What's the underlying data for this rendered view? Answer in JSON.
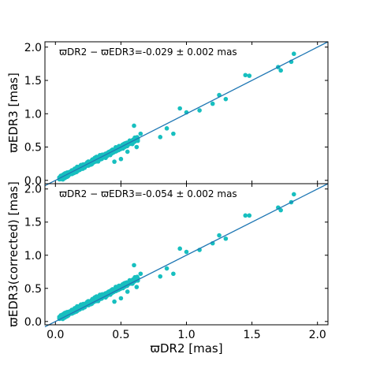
{
  "chart_data": [
    {
      "type": "scatter",
      "panel": "top",
      "annotation": "ϖDR2 − ϖEDR3=-0.029 ± 0.002 mas",
      "ylabel": "ϖEDR3 [mas]",
      "xlabel": "",
      "xlim": [
        -0.08,
        2.08
      ],
      "ylim": [
        -0.05,
        2.08
      ],
      "yticks": [
        "0.0",
        "0.5",
        "1.0",
        "1.5",
        "2.0"
      ],
      "xticks": [
        0.0,
        0.5,
        1.0,
        1.5,
        2.0
      ],
      "show_xtick_labels": false,
      "offset": 0.029,
      "reference_line": [
        [
          -0.08,
          -0.08
        ],
        [
          2.08,
          2.08
        ]
      ],
      "outliers": [
        [
          0.55,
          0.43
        ],
        [
          0.62,
          0.5
        ],
        [
          0.6,
          0.82
        ],
        [
          0.65,
          0.7
        ],
        [
          0.45,
          0.28
        ],
        [
          0.5,
          0.32
        ],
        [
          0.8,
          0.65
        ],
        [
          0.85,
          0.78
        ],
        [
          0.9,
          0.7
        ],
        [
          0.95,
          1.08
        ],
        [
          1.0,
          1.02
        ],
        [
          1.1,
          1.05
        ],
        [
          1.2,
          1.15
        ],
        [
          1.25,
          1.28
        ],
        [
          1.3,
          1.22
        ],
        [
          1.45,
          1.58
        ],
        [
          1.48,
          1.57
        ],
        [
          1.7,
          1.7
        ],
        [
          1.72,
          1.65
        ],
        [
          1.8,
          1.78
        ],
        [
          1.82,
          1.9
        ]
      ]
    },
    {
      "type": "scatter",
      "panel": "bottom",
      "annotation": "ϖDR2 − ϖEDR3=-0.054 ± 0.002 mas",
      "ylabel": "ϖEDR3(corrected) [mas]",
      "xlabel": "ϖDR2 [mas]",
      "xlim": [
        -0.08,
        2.08
      ],
      "ylim": [
        -0.05,
        2.08
      ],
      "yticks": [
        "0.0",
        "0.5",
        "1.0",
        "1.5",
        "2.0"
      ],
      "xticks": [
        "0.0",
        "0.5",
        "1.0",
        "1.5",
        "2.0"
      ],
      "show_xtick_labels": true,
      "offset": 0.054,
      "reference_line": [
        [
          -0.08,
          -0.08
        ],
        [
          2.08,
          2.08
        ]
      ],
      "outliers": [
        [
          0.55,
          0.45
        ],
        [
          0.62,
          0.52
        ],
        [
          0.6,
          0.85
        ],
        [
          0.65,
          0.72
        ],
        [
          0.45,
          0.3
        ],
        [
          0.5,
          0.35
        ],
        [
          0.8,
          0.68
        ],
        [
          0.85,
          0.8
        ],
        [
          0.9,
          0.72
        ],
        [
          0.95,
          1.1
        ],
        [
          1.0,
          1.05
        ],
        [
          1.1,
          1.08
        ],
        [
          1.2,
          1.18
        ],
        [
          1.25,
          1.3
        ],
        [
          1.3,
          1.25
        ],
        [
          1.45,
          1.6
        ],
        [
          1.48,
          1.6
        ],
        [
          1.7,
          1.72
        ],
        [
          1.72,
          1.68
        ],
        [
          1.8,
          1.8
        ],
        [
          1.82,
          1.92
        ]
      ]
    }
  ],
  "colors": {
    "points": "#17bfbf",
    "line": "#1f77b4"
  }
}
